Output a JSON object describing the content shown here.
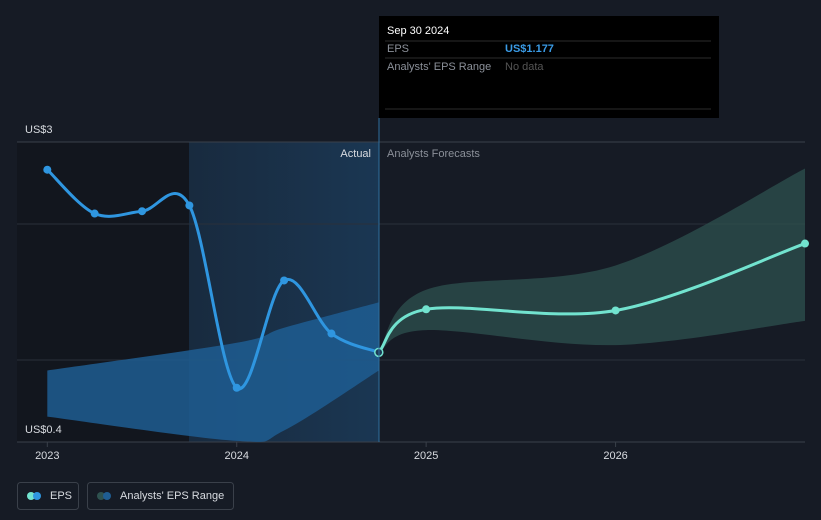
{
  "chart_data": {
    "type": "line",
    "actual_label": "Actual",
    "forecast_label": "Analysts Forecasts",
    "xlim": [
      2022.84,
      2027
    ],
    "xticks": [
      2023,
      2024,
      2025,
      2026
    ],
    "ylim": [
      0.4,
      3
    ],
    "yticks": [
      {
        "value": 3,
        "label": "US$3"
      },
      {
        "value": 0.4,
        "label": "US$0.4"
      }
    ],
    "series": [
      {
        "name": "EPS",
        "color": "#2f96e0",
        "x": [
          2023,
          2023.25,
          2023.5,
          2023.75,
          2024,
          2024.25,
          2024.5,
          2024.75
        ],
        "values": [
          2.76,
          2.38,
          2.4,
          2.45,
          0.87,
          1.8,
          1.34,
          1.177
        ],
        "value_labels": [
          null,
          null,
          null,
          null,
          null,
          null,
          null,
          "US$1.177"
        ]
      },
      {
        "color": "#72e3cf",
        "x": [
          2024.75,
          2025,
          2026,
          2027
        ],
        "values": [
          1.177,
          1.55,
          1.54,
          2.12
        ]
      }
    ],
    "ranges": [
      {
        "color": "#1f5d92",
        "x": [
          2023,
          2024,
          2024.25,
          2024.75
        ],
        "high": [
          1.02,
          1.26,
          1.39,
          1.61
        ],
        "low": [
          0.62,
          0.41,
          0.5,
          1.02
        ]
      },
      {
        "name": "Analysts' EPS Range",
        "color": "#2e514f",
        "x": [
          2024.75,
          2025,
          2026,
          2027
        ],
        "high": [
          1.177,
          1.72,
          1.93,
          2.77
        ],
        "low": [
          1.177,
          1.37,
          1.24,
          1.45
        ]
      }
    ],
    "tooltip": {
      "date": "Sep 30 2024",
      "eps_label": "EPS",
      "range_label": "Analysts' EPS Range",
      "range_value": "No data"
    }
  }
}
